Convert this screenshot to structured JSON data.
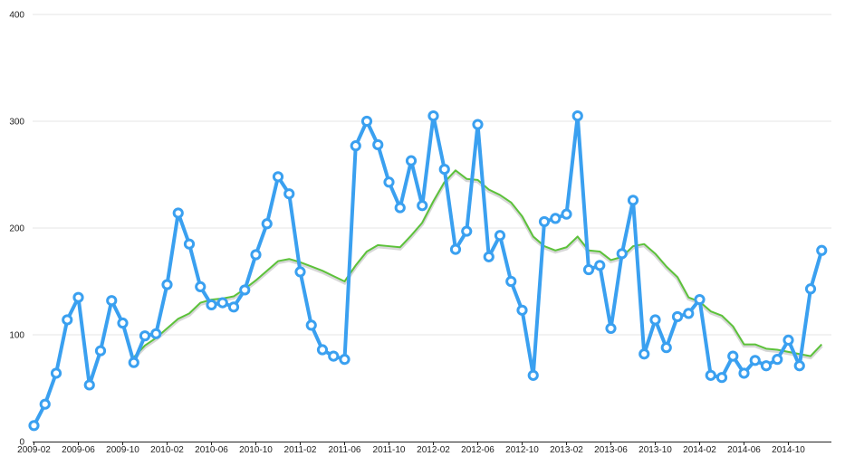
{
  "chart_data": {
    "type": "line",
    "title": "",
    "xlabel": "",
    "ylabel": "",
    "ylim": [
      0,
      400
    ],
    "y_ticks": [
      "0",
      "100",
      "200",
      "300",
      "400"
    ],
    "grid": true,
    "x_ticks": [
      "2009-02",
      "2009-06",
      "2009-10",
      "2010-02",
      "2010-06",
      "2010-10",
      "2011-02",
      "2011-06",
      "2011-10",
      "2012-02",
      "2012-06",
      "2012-10",
      "2013-02",
      "2013-06",
      "2013-10",
      "2014-02",
      "2014-06",
      "2014-10"
    ],
    "x": [
      "2009-02",
      "2009-03",
      "2009-04",
      "2009-05",
      "2009-06",
      "2009-07",
      "2009-08",
      "2009-09",
      "2009-10",
      "2009-11",
      "2009-12",
      "2010-01",
      "2010-02",
      "2010-03",
      "2010-04",
      "2010-05",
      "2010-06",
      "2010-07",
      "2010-08",
      "2010-09",
      "2010-10",
      "2010-11",
      "2010-12",
      "2011-01",
      "2011-02",
      "2011-03",
      "2011-04",
      "2011-05",
      "2011-06",
      "2011-07",
      "2011-08",
      "2011-09",
      "2011-10",
      "2011-11",
      "2011-12",
      "2012-01",
      "2012-02",
      "2012-03",
      "2012-04",
      "2012-05",
      "2012-06",
      "2012-07",
      "2012-08",
      "2012-09",
      "2012-10",
      "2012-11",
      "2012-12",
      "2013-01",
      "2013-02",
      "2013-03",
      "2013-04",
      "2013-05",
      "2013-06",
      "2013-07",
      "2013-08",
      "2013-09",
      "2013-10",
      "2013-11",
      "2013-12",
      "2014-01",
      "2014-02",
      "2014-03",
      "2014-04",
      "2014-05",
      "2014-06",
      "2014-07",
      "2014-08",
      "2014-09",
      "2014-10",
      "2014-11",
      "2014-12",
      "2015-01"
    ],
    "series": [
      {
        "color": "#3aa0f0",
        "markers": true,
        "values": [
          15,
          35,
          64,
          114,
          135,
          53,
          85,
          132,
          111,
          74,
          99,
          101,
          147,
          214,
          185,
          145,
          128,
          130,
          126,
          142,
          175,
          204,
          248,
          232,
          159,
          109,
          86,
          80,
          77,
          277,
          300,
          278,
          243,
          219,
          263,
          221,
          305,
          255,
          180,
          197,
          297,
          173,
          193,
          150,
          123,
          62,
          206,
          209,
          213,
          305,
          161,
          165,
          106,
          176,
          226,
          82,
          114,
          88,
          117,
          120,
          133,
          62,
          60,
          80,
          64,
          76,
          71,
          77,
          95,
          71,
          143,
          179
        ]
      },
      {
        "color": "#5cc23a",
        "markers": false,
        "values": [
          null,
          null,
          null,
          null,
          null,
          null,
          null,
          null,
          null,
          79,
          90,
          97,
          106,
          115,
          120,
          130,
          133,
          134,
          136,
          143,
          151,
          160,
          169,
          171,
          168,
          164,
          160,
          155,
          150,
          165,
          178,
          184,
          183,
          182,
          193,
          205,
          225,
          243,
          254,
          246,
          245,
          236,
          231,
          224,
          211,
          192,
          183,
          179,
          182,
          192,
          179,
          178,
          170,
          173,
          183,
          185,
          176,
          164,
          154,
          135,
          131,
          122,
          118,
          108,
          91,
          91,
          87,
          86,
          84,
          82,
          80,
          91
        ]
      }
    ]
  }
}
